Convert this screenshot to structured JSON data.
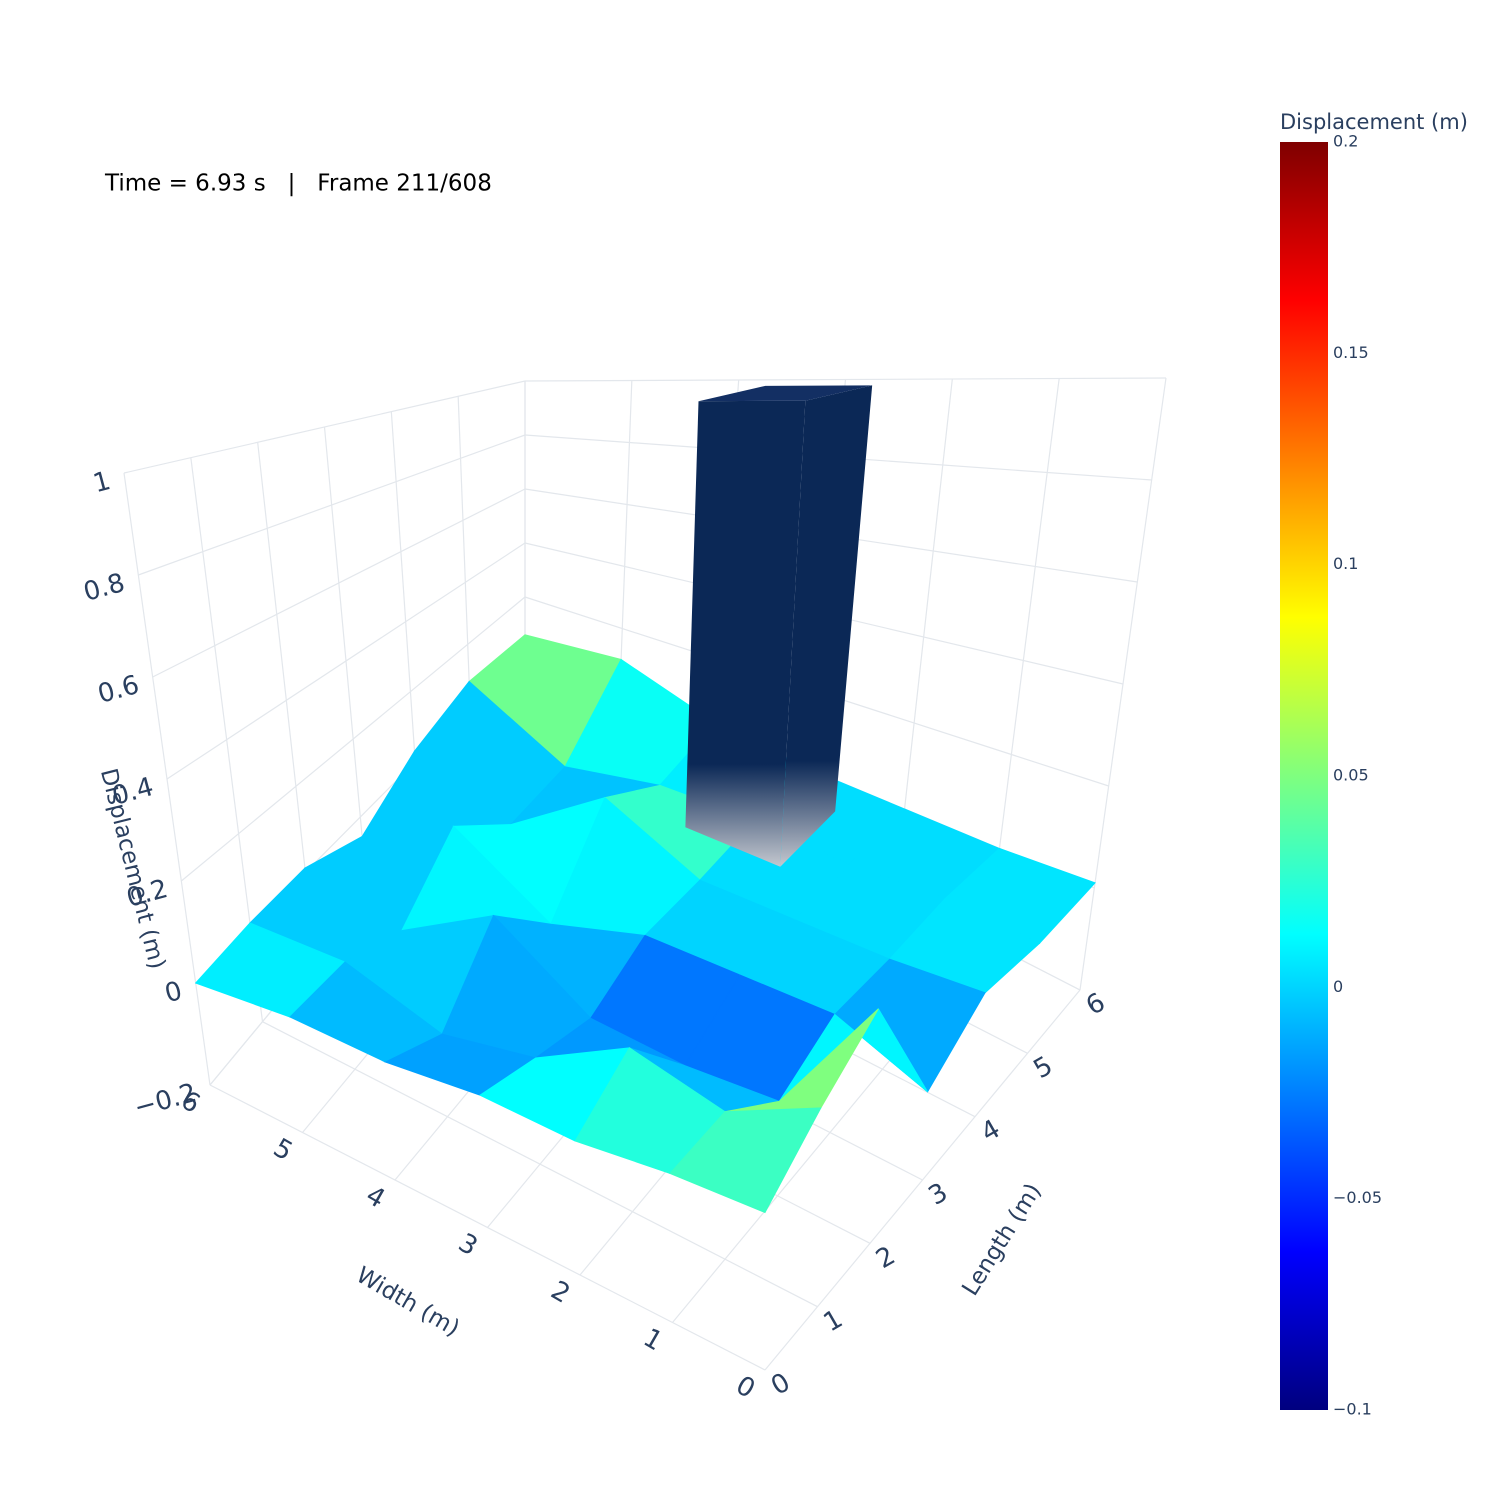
{
  "chart_data": {
    "type": "surface",
    "annotation": "Time = 6.93 s   |   Frame 211/608",
    "x_label": "Width (m)",
    "y_label": "Length (m)",
    "z_label": "Displacement (m)",
    "x": [
      0,
      1,
      2,
      3,
      4,
      5,
      6
    ],
    "y": [
      0,
      1,
      2,
      3,
      4,
      5,
      6
    ],
    "z": [
      [
        0.01,
        0.01,
        0.0,
        0.01,
        0.0,
        0.01,
        0.0
      ],
      [
        0.08,
        0.02,
        0.06,
        -0.02,
        -0.05,
        0.01,
        0.01
      ],
      [
        0.15,
        -0.05,
        -0.06,
        -0.05,
        0.07,
        -0.04,
        0.01
      ],
      [
        -0.06,
        0.0,
        0.0,
        0.0,
        -0.06,
        0.07,
        -0.05
      ],
      [
        0.01,
        0.0,
        0.0,
        0.0,
        0.1,
        -0.06,
        0.03
      ],
      [
        0.0,
        0.01,
        0.0,
        0.01,
        0.0,
        -0.06,
        0.08
      ],
      [
        0.01,
        0.0,
        0.0,
        0.0,
        0.02,
        0.1,
        0.06
      ]
    ],
    "xlim": [
      0,
      6
    ],
    "ylim": [
      0,
      6
    ],
    "zlim": [
      -0.2,
      1
    ],
    "xticks": [
      0,
      1,
      2,
      3,
      4,
      5,
      6
    ],
    "yticks": [
      0,
      1,
      2,
      3,
      4,
      5,
      6
    ],
    "zticks": [
      {
        "value": -0.2,
        "label": "−0.2"
      },
      0,
      0.2,
      0.4,
      0.6,
      0.8,
      1
    ],
    "obstacle": {
      "x": [
        2.5,
        3.5
      ],
      "y": [
        4.6,
        5.6
      ],
      "z": [
        0,
        1
      ],
      "color": "#0b2856"
    },
    "grid": true,
    "colorscale": [
      "#00007f",
      "#0000ff",
      "#007fff",
      "#00ffff",
      "#7fff7f",
      "#ffff00",
      "#ff7f00",
      "#ff0000",
      "#7f0000"
    ],
    "colorbar": {
      "title": "Displacement (m)",
      "clim": [
        -0.1,
        0.2
      ],
      "ticks": [
        {
          "value": -0.1,
          "label": "−0.1"
        },
        {
          "value": -0.05,
          "label": "−0.05"
        },
        0,
        0.05,
        0.1,
        0.15,
        0.2
      ]
    }
  }
}
